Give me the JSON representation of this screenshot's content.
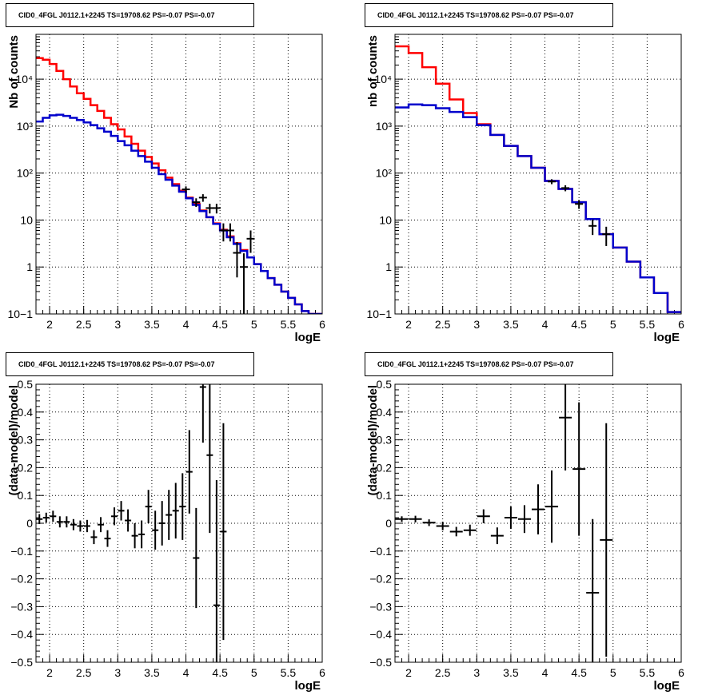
{
  "chart_data": [
    {
      "type": "line",
      "panel": "top-left",
      "title": "CID0_4FGL J0112.1+2245 TS=19708.62 PS=-0.07 PS=-0.07",
      "xlabel": "logE",
      "ylabel": "Nb of counts",
      "xlim": [
        1.8,
        6.0
      ],
      "ylim": [
        0.1,
        90000
      ],
      "yscale": "log",
      "grid": true,
      "xticks": [
        "2",
        "2.5",
        "3",
        "3.5",
        "4",
        "4.5",
        "5",
        "5.5",
        "6"
      ],
      "yticks": [
        "10−1",
        "1",
        "10",
        "10²",
        "10³",
        "10⁴"
      ],
      "series": [
        {
          "color": "#ff0000",
          "style": "step",
          "edges": [
            1.8,
            1.9,
            2.0,
            2.1,
            2.2,
            2.3,
            2.4,
            2.5,
            2.6,
            2.7,
            2.8,
            2.9,
            3.0,
            3.1,
            3.2,
            3.3,
            3.4,
            3.5,
            3.6,
            3.7,
            3.8,
            3.9,
            4.0,
            4.1,
            4.2,
            4.3,
            4.4,
            4.5,
            4.6,
            4.7,
            4.8,
            4.9,
            5.0,
            5.1,
            5.2,
            5.3,
            5.4,
            5.5,
            5.6,
            5.7,
            5.8,
            5.9,
            6.0
          ],
          "values": [
            28000,
            26000,
            21000,
            15000,
            10000,
            7000,
            5000,
            3800,
            2800,
            2100,
            1500,
            1100,
            850,
            600,
            420,
            300,
            220,
            160,
            115,
            80,
            58,
            42,
            30,
            22,
            16,
            11.5,
            8.5,
            6.2,
            4.5,
            3.2,
            2.3,
            1.6,
            1.15,
            0.82,
            0.58,
            0.42,
            0.3,
            0.22,
            0.16,
            0.115,
            0.1,
            0.1
          ]
        },
        {
          "color": "#0000cc",
          "style": "step",
          "edges": [
            1.8,
            1.9,
            2.0,
            2.1,
            2.2,
            2.3,
            2.4,
            2.5,
            2.6,
            2.7,
            2.8,
            2.9,
            3.0,
            3.1,
            3.2,
            3.3,
            3.4,
            3.5,
            3.6,
            3.7,
            3.8,
            3.9,
            4.0,
            4.1,
            4.2,
            4.3,
            4.4,
            4.5,
            4.6,
            4.7,
            4.8,
            4.9,
            5.0,
            5.1,
            5.2,
            5.3,
            5.4,
            5.5,
            5.6,
            5.7,
            5.8,
            5.9,
            6.0
          ],
          "values": [
            1250,
            1500,
            1700,
            1750,
            1650,
            1500,
            1350,
            1200,
            1050,
            900,
            760,
            620,
            480,
            390,
            300,
            230,
            175,
            130,
            95,
            72,
            54,
            40,
            29,
            21,
            15.5,
            11.5,
            8.3,
            6.0,
            4.3,
            3.1,
            2.2,
            1.6,
            1.15,
            0.82,
            0.58,
            0.42,
            0.3,
            0.22,
            0.16,
            0.115,
            0.1,
            0.1
          ]
        },
        {
          "color": "#000000",
          "style": "points",
          "x": [
            4.0,
            4.15,
            4.25,
            4.35,
            4.45,
            4.55,
            4.65,
            4.75,
            4.85,
            4.95
          ],
          "y": [
            45,
            24,
            30,
            18,
            18,
            6,
            6,
            2,
            1,
            4
          ],
          "yerr": [
            7,
            5,
            5.5,
            4.2,
            4.2,
            2.5,
            2.5,
            1.4,
            0.95,
            2
          ]
        }
      ]
    },
    {
      "type": "line",
      "panel": "top-right",
      "title": "CID0_4FGL J0112.1+2245 TS=19708.62 PS=-0.07 PS=-0.07",
      "xlabel": "logE",
      "ylabel": "nb of counts",
      "xlim": [
        1.8,
        6.0
      ],
      "ylim": [
        0.1,
        90000
      ],
      "yscale": "log",
      "grid": true,
      "xticks": [
        "2",
        "2.5",
        "3",
        "3.5",
        "4",
        "4.5",
        "5",
        "5.5",
        "6"
      ],
      "yticks": [
        "10−1",
        "1",
        "10",
        "10²",
        "10³",
        "10⁴"
      ],
      "series": [
        {
          "color": "#ff0000",
          "style": "step",
          "edges": [
            1.8,
            2.0,
            2.2,
            2.4,
            2.6,
            2.8,
            3.0,
            3.2,
            3.4,
            3.6,
            3.8,
            4.0,
            4.2,
            4.4,
            4.6,
            4.8,
            5.0,
            5.2,
            5.4,
            5.6,
            5.8,
            6.0
          ],
          "values": [
            50000,
            36000,
            18000,
            8000,
            3700,
            1900,
            1100,
            650,
            380,
            230,
            130,
            68,
            46,
            24,
            10.5,
            5,
            2.6,
            1.3,
            0.6,
            0.28,
            0.11
          ]
        },
        {
          "color": "#0000cc",
          "style": "step",
          "edges": [
            1.8,
            2.0,
            2.2,
            2.4,
            2.6,
            2.8,
            3.0,
            3.2,
            3.4,
            3.6,
            3.8,
            4.0,
            4.2,
            4.4,
            4.6,
            4.8,
            5.0,
            5.2,
            5.4,
            5.6,
            5.8,
            6.0
          ],
          "values": [
            2500,
            2900,
            2800,
            2400,
            2000,
            1550,
            1050,
            650,
            380,
            230,
            130,
            68,
            46,
            24,
            10.5,
            5,
            2.6,
            1.3,
            0.6,
            0.28,
            0.11
          ]
        },
        {
          "color": "#000000",
          "style": "points",
          "x": [
            4.1,
            4.3,
            4.5,
            4.7,
            4.9
          ],
          "y": [
            66,
            48,
            22,
            7.5,
            5
          ],
          "yerr": [
            8,
            7,
            4.7,
            2.7,
            2.2
          ]
        }
      ]
    },
    {
      "type": "scatter",
      "panel": "bottom-left",
      "title": "CID0_4FGL J0112.1+2245 TS=19708.62 PS=-0.07 PS=-0.07",
      "xlabel": "logE",
      "ylabel": "(data-model)/model",
      "xlim": [
        1.8,
        6.0
      ],
      "ylim": [
        -0.5,
        0.5
      ],
      "grid": true,
      "xticks": [
        "2",
        "2.5",
        "3",
        "3.5",
        "4",
        "4.5",
        "5",
        "5.5",
        "6"
      ],
      "yticks": [
        "−0.5",
        "−0.4",
        "−0.3",
        "−0.2",
        "−0.1",
        "0",
        "0.1",
        "0.2",
        "0.3",
        "0.4",
        "0.5"
      ],
      "series": [
        {
          "color": "#000000",
          "x": [
            1.85,
            1.95,
            2.05,
            2.15,
            2.25,
            2.35,
            2.45,
            2.55,
            2.65,
            2.75,
            2.85,
            2.95,
            3.05,
            3.15,
            3.25,
            3.35,
            3.45,
            3.55,
            3.65,
            3.75,
            3.85,
            3.95,
            4.05,
            4.15,
            4.25,
            4.35,
            4.45,
            4.55
          ],
          "y": [
            0.015,
            0.02,
            0.025,
            0.005,
            0.005,
            -0.005,
            -0.01,
            -0.01,
            -0.05,
            -0.005,
            -0.055,
            0.025,
            0.045,
            0.01,
            -0.045,
            -0.04,
            0.06,
            -0.025,
            0.0,
            0.03,
            0.045,
            0.06,
            0.185,
            -0.125,
            0.49,
            0.245,
            -0.295,
            -0.03
          ],
          "yerr": [
            0.018,
            0.018,
            0.02,
            0.02,
            0.02,
            0.02,
            0.02,
            0.022,
            0.025,
            0.027,
            0.03,
            0.032,
            0.035,
            0.04,
            0.045,
            0.05,
            0.06,
            0.07,
            0.08,
            0.09,
            0.1,
            0.12,
            0.15,
            0.18,
            0.2,
            0.28,
            0.45,
            0.39
          ]
        }
      ]
    },
    {
      "type": "scatter",
      "panel": "bottom-right",
      "title": "CID0_4FGL J0112.1+2245 TS=19708.62 PS=-0.07 PS=-0.07",
      "xlabel": "logE",
      "ylabel": "(data-model)/model",
      "xlim": [
        1.8,
        6.0
      ],
      "ylim": [
        -0.5,
        0.5
      ],
      "grid": true,
      "xticks": [
        "2",
        "2.5",
        "3",
        "3.5",
        "4",
        "4.5",
        "5",
        "5.5",
        "6"
      ],
      "yticks": [
        "−0.5",
        "−0.4",
        "−0.3",
        "−0.2",
        "−0.1",
        "0",
        "0.1",
        "0.2",
        "0.3",
        "0.4",
        "0.5"
      ],
      "series": [
        {
          "color": "#000000",
          "x": [
            1.9,
            2.1,
            2.3,
            2.5,
            2.7,
            2.9,
            3.1,
            3.3,
            3.5,
            3.7,
            3.9,
            4.1,
            4.3,
            4.5,
            4.7,
            4.9
          ],
          "y": [
            0.015,
            0.015,
            0.002,
            -0.01,
            -0.03,
            -0.025,
            0.025,
            -0.045,
            0.02,
            0.015,
            0.05,
            0.06,
            0.38,
            0.195,
            -0.25,
            -0.06
          ],
          "yerr": [
            0.01,
            0.012,
            0.012,
            0.015,
            0.017,
            0.02,
            0.025,
            0.03,
            0.04,
            0.05,
            0.09,
            0.13,
            0.19,
            0.24,
            0.265,
            0.42
          ]
        }
      ]
    }
  ]
}
